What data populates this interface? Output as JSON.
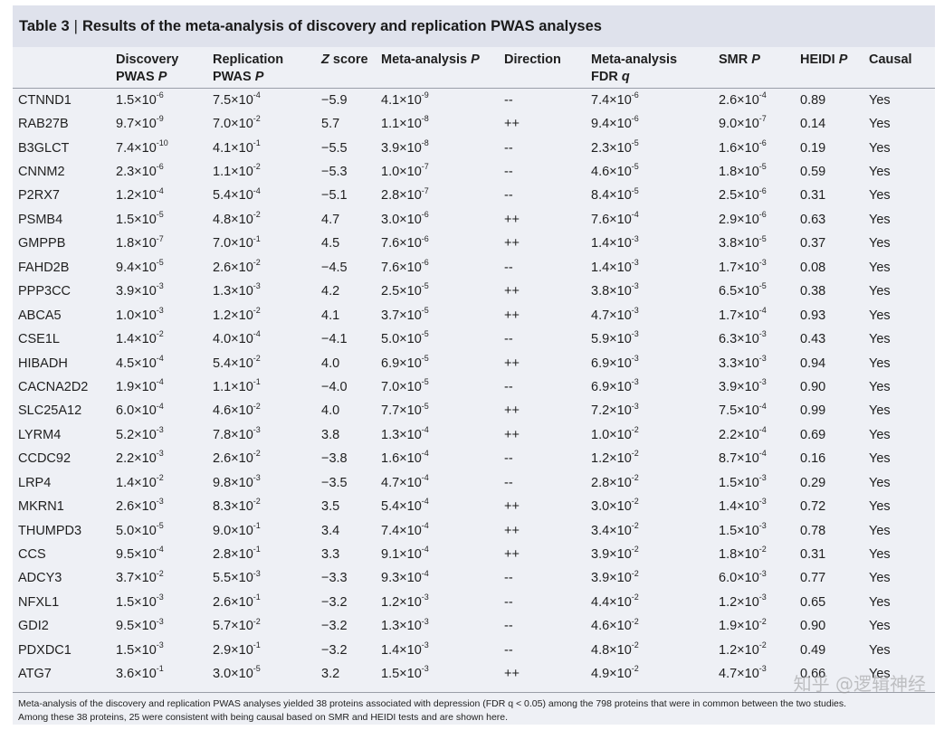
{
  "title": {
    "label": "Table 3",
    "separator": "|",
    "text": "Results of the meta-analysis of discovery and replication PWAS analyses"
  },
  "columns": {
    "gene": "",
    "discovery": {
      "line1": "Discovery",
      "line2": "PWAS ",
      "italic": "P"
    },
    "replication": {
      "line1": "Replication",
      "line2": "PWAS ",
      "italic": "P"
    },
    "z": {
      "italic": "Z",
      "rest": " score"
    },
    "meta_p": {
      "text": "Meta-analysis ",
      "italic": "P"
    },
    "direction": "Direction",
    "fdr": {
      "line1": "Meta-analysis",
      "line2": "FDR ",
      "italic": "q"
    },
    "smr": {
      "text": "SMR ",
      "italic": "P"
    },
    "heidi": {
      "text": "HEIDI ",
      "italic": "P"
    },
    "causal": "Causal"
  },
  "rows": [
    [
      "CTNND1",
      "1.5×10",
      "-6",
      "7.5×10",
      "-4",
      "−5.9",
      "4.1×10",
      "-9",
      "--",
      "7.4×10",
      "-6",
      "2.6×10",
      "-4",
      "0.89",
      "Yes"
    ],
    [
      "RAB27B",
      "9.7×10",
      "-9",
      "7.0×10",
      "-2",
      "5.7",
      "1.1×10",
      "-8",
      "++",
      "9.4×10",
      "-6",
      "9.0×10",
      "-7",
      "0.14",
      "Yes"
    ],
    [
      "B3GLCT",
      "7.4×10",
      "-10",
      "4.1×10",
      "-1",
      "−5.5",
      "3.9×10",
      "-8",
      "--",
      "2.3×10",
      "-5",
      "1.6×10",
      "-6",
      "0.19",
      "Yes"
    ],
    [
      "CNNM2",
      "2.3×10",
      "-6",
      "1.1×10",
      "-2",
      "−5.3",
      "1.0×10",
      "-7",
      "--",
      "4.6×10",
      "-5",
      "1.8×10",
      "-5",
      "0.59",
      "Yes"
    ],
    [
      "P2RX7",
      "1.2×10",
      "-4",
      "5.4×10",
      "-4",
      "−5.1",
      "2.8×10",
      "-7",
      "--",
      "8.4×10",
      "-5",
      "2.5×10",
      "-6",
      "0.31",
      "Yes"
    ],
    [
      "PSMB4",
      "1.5×10",
      "-5",
      "4.8×10",
      "-2",
      "4.7",
      "3.0×10",
      "-6",
      "++",
      "7.6×10",
      "-4",
      "2.9×10",
      "-6",
      "0.63",
      "Yes"
    ],
    [
      "GMPPB",
      "1.8×10",
      "-7",
      "7.0×10",
      "-1",
      "4.5",
      "7.6×10",
      "-6",
      "++",
      "1.4×10",
      "-3",
      "3.8×10",
      "-5",
      "0.37",
      "Yes"
    ],
    [
      "FAHD2B",
      "9.4×10",
      "-5",
      "2.6×10",
      "-2",
      "−4.5",
      "7.6×10",
      "-6",
      "--",
      "1.4×10",
      "-3",
      "1.7×10",
      "-3",
      "0.08",
      "Yes"
    ],
    [
      "PPP3CC",
      "3.9×10",
      "-3",
      "1.3×10",
      "-3",
      "4.2",
      "2.5×10",
      "-5",
      "++",
      "3.8×10",
      "-3",
      "6.5×10",
      "-5",
      "0.38",
      "Yes"
    ],
    [
      "ABCA5",
      "1.0×10",
      "-3",
      "1.2×10",
      "-2",
      "4.1",
      "3.7×10",
      "-5",
      "++",
      "4.7×10",
      "-3",
      "1.7×10",
      "-4",
      "0.93",
      "Yes"
    ],
    [
      "CSE1L",
      "1.4×10",
      "-2",
      "4.0×10",
      "-4",
      "−4.1",
      "5.0×10",
      "-5",
      "--",
      "5.9×10",
      "-3",
      "6.3×10",
      "-3",
      "0.43",
      "Yes"
    ],
    [
      "HIBADH",
      "4.5×10",
      "-4",
      "5.4×10",
      "-2",
      "4.0",
      "6.9×10",
      "-5",
      "++",
      "6.9×10",
      "-3",
      "3.3×10",
      "-3",
      "0.94",
      "Yes"
    ],
    [
      "CACNA2D2",
      "1.9×10",
      "-4",
      "1.1×10",
      "-1",
      "−4.0",
      "7.0×10",
      "-5",
      "--",
      "6.9×10",
      "-3",
      "3.9×10",
      "-3",
      "0.90",
      "Yes"
    ],
    [
      "SLC25A12",
      "6.0×10",
      "-4",
      "4.6×10",
      "-2",
      "4.0",
      "7.7×10",
      "-5",
      "++",
      "7.2×10",
      "-3",
      "7.5×10",
      "-4",
      "0.99",
      "Yes"
    ],
    [
      "LYRM4",
      "5.2×10",
      "-3",
      "7.8×10",
      "-3",
      "3.8",
      "1.3×10",
      "-4",
      "++",
      "1.0×10",
      "-2",
      "2.2×10",
      "-4",
      "0.69",
      "Yes"
    ],
    [
      "CCDC92",
      "2.2×10",
      "-3",
      "2.6×10",
      "-2",
      "−3.8",
      "1.6×10",
      "-4",
      "--",
      "1.2×10",
      "-2",
      "8.7×10",
      "-4",
      "0.16",
      "Yes"
    ],
    [
      "LRP4",
      "1.4×10",
      "-2",
      "9.8×10",
      "-3",
      "−3.5",
      "4.7×10",
      "-4",
      "--",
      "2.8×10",
      "-2",
      "1.5×10",
      "-3",
      "0.29",
      "Yes"
    ],
    [
      "MKRN1",
      "2.6×10",
      "-3",
      "8.3×10",
      "-2",
      "3.5",
      "5.4×10",
      "-4",
      "++",
      "3.0×10",
      "-2",
      "1.4×10",
      "-3",
      "0.72",
      "Yes"
    ],
    [
      "THUMPD3",
      "5.0×10",
      "-5",
      "9.0×10",
      "-1",
      "3.4",
      "7.4×10",
      "-4",
      "++",
      "3.4×10",
      "-2",
      "1.5×10",
      "-3",
      "0.78",
      "Yes"
    ],
    [
      "CCS",
      "9.5×10",
      "-4",
      "2.8×10",
      "-1",
      "3.3",
      "9.1×10",
      "-4",
      "++",
      "3.9×10",
      "-2",
      "1.8×10",
      "-2",
      "0.31",
      "Yes"
    ],
    [
      "ADCY3",
      "3.7×10",
      "-2",
      "5.5×10",
      "-3",
      "−3.3",
      "9.3×10",
      "-4",
      "--",
      "3.9×10",
      "-2",
      "6.0×10",
      "-3",
      "0.77",
      "Yes"
    ],
    [
      "NFXL1",
      "1.5×10",
      "-3",
      "2.6×10",
      "-1",
      "−3.2",
      "1.2×10",
      "-3",
      "--",
      "4.4×10",
      "-2",
      "1.2×10",
      "-3",
      "0.65",
      "Yes"
    ],
    [
      "GDI2",
      "9.5×10",
      "-3",
      "5.7×10",
      "-2",
      "−3.2",
      "1.3×10",
      "-3",
      "--",
      "4.6×10",
      "-2",
      "1.9×10",
      "-2",
      "0.90",
      "Yes"
    ],
    [
      "PDXDC1",
      "1.5×10",
      "-3",
      "2.9×10",
      "-1",
      "−3.2",
      "1.4×10",
      "-3",
      "--",
      "4.8×10",
      "-2",
      "1.2×10",
      "-2",
      "0.49",
      "Yes"
    ],
    [
      "ATG7",
      "3.6×10",
      "-1",
      "3.0×10",
      "-5",
      "3.2",
      "1.5×10",
      "-3",
      "++",
      "4.9×10",
      "-2",
      "4.7×10",
      "-3",
      "0.66",
      "Yes"
    ]
  ],
  "footnote": {
    "line1": "Meta-analysis of the discovery and replication PWAS analyses yielded 38 proteins associated with depression (FDR q < 0.05) among the 798 proteins that were in common between the two studies.",
    "line2": "Among these 38 proteins, 25 were consistent with being causal based on SMR and HEIDI tests and are shown here."
  },
  "watermark": "知乎 @逻辑神经"
}
